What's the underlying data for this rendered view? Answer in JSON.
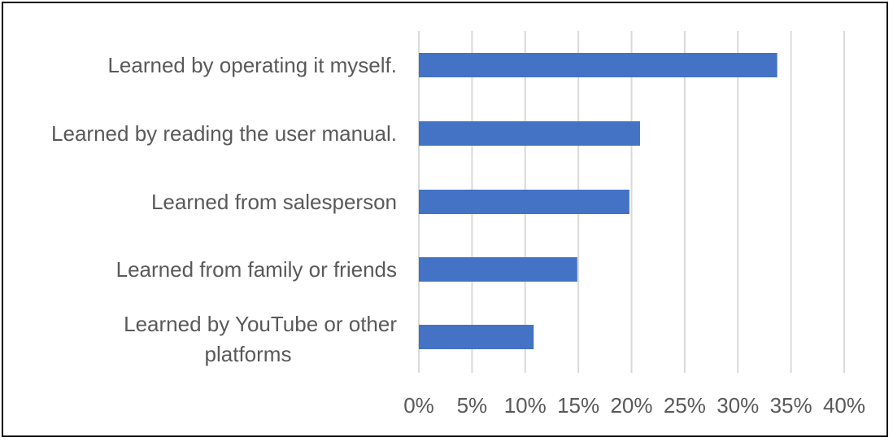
{
  "chart_data": {
    "type": "bar",
    "orientation": "horizontal",
    "categories": [
      "Learned by operating it myself.",
      "Learned by reading the user manual.",
      "Learned from salesperson",
      "Learned from family or friends",
      "Learned by YouTube or other platforms"
    ],
    "category_lines": [
      [
        "Learned by operating it myself."
      ],
      [
        "Learned by reading the user manual."
      ],
      [
        "Learned from salesperson"
      ],
      [
        "Learned from family or friends"
      ],
      [
        "Learned by YouTube or other",
        "platforms"
      ]
    ],
    "values": [
      33.7,
      20.8,
      19.8,
      14.9,
      10.8
    ],
    "value_unit": "%",
    "xlim": [
      0,
      40
    ],
    "xticks": [
      0,
      5,
      10,
      15,
      20,
      25,
      30,
      35,
      40
    ],
    "xtick_labels": [
      "0%",
      "5%",
      "10%",
      "15%",
      "20%",
      "25%",
      "30%",
      "35%",
      "40%"
    ],
    "grid": true,
    "legend": "none",
    "colors": {
      "bar": "#4472C4",
      "grid": "#D9D9D9",
      "text": "#595959",
      "border": "#000000"
    }
  }
}
